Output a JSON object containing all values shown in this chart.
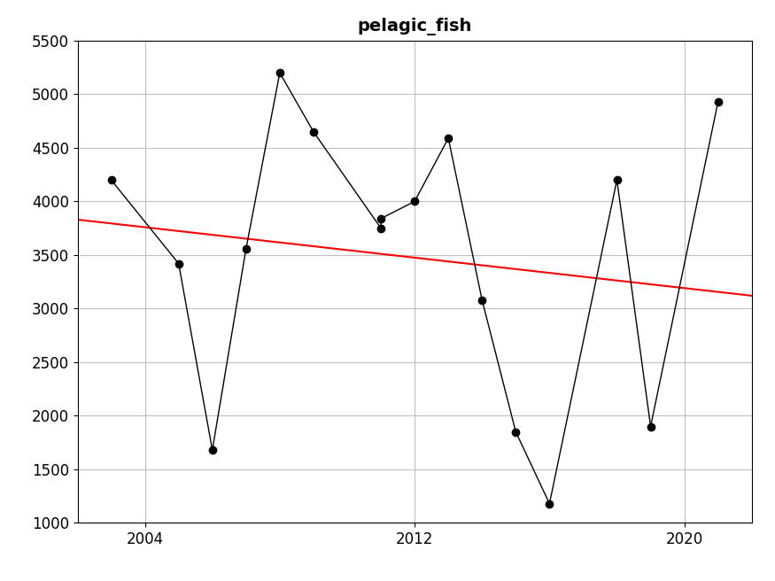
{
  "title": "pelagic_fish",
  "years": [
    2003,
    2005,
    2006,
    2007,
    2008,
    2009,
    2011,
    2011,
    2012,
    2013,
    2014,
    2015,
    2016,
    2018,
    2019,
    2021
  ],
  "values": [
    4200,
    3420,
    1680,
    3560,
    5200,
    4650,
    3750,
    3840,
    4000,
    4590,
    3080,
    1850,
    1180,
    4200,
    1900,
    4930
  ],
  "xlim": [
    2002.0,
    2022.0
  ],
  "ylim": [
    1000,
    5500
  ],
  "xticks": [
    2004,
    2012,
    2020
  ],
  "yticks": [
    1000,
    1500,
    2000,
    2500,
    3000,
    3500,
    4000,
    4500,
    5000,
    5500
  ],
  "trend_x": [
    2002.0,
    2022.0
  ],
  "trend_y": [
    3830,
    3120
  ],
  "data_color": "#000000",
  "trend_color": "#ff0000",
  "background_color": "#ffffff",
  "grid_color": "#c0c0c0",
  "title_fontsize": 14,
  "tick_fontsize": 12,
  "linewidth": 1.0,
  "markersize": 6,
  "trend_linewidth": 1.5
}
